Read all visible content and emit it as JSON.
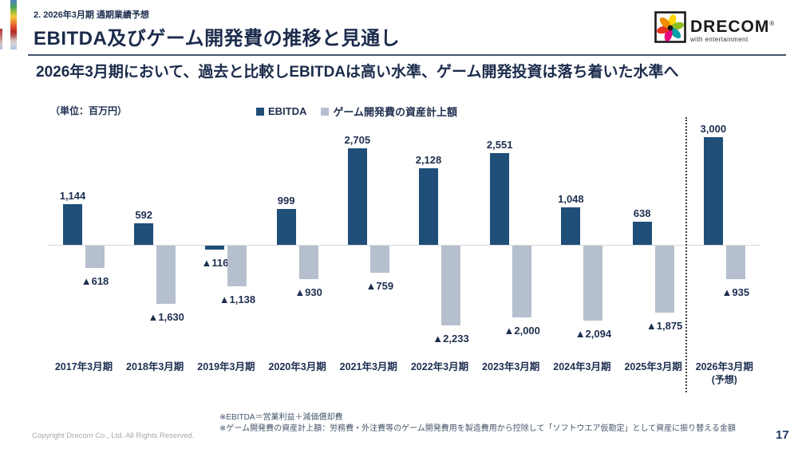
{
  "page": {
    "eyebrow": "2. 2026年3月期 通期業績予想",
    "title": "EBITDA及びゲーム開発費の推移と見通し",
    "subtitle": "2026年3月期において、過去と比較しEBITDAは高い水準、ゲーム開発投資は落ち着いた水準へ",
    "copyright": "Copyright Drecom Co., Ltd. All Rights Reserved.",
    "page_number": "17",
    "notes": [
      "※EBITDA＝営業利益＋減価償却費",
      "※ゲーム開発費の資産計上額：労務費・外注費等のゲーム開発費用を製造費用から控除して「ソフトウエア仮勘定」として資産に振り替える金額"
    ]
  },
  "logo": {
    "name": "DRECOM",
    "registered": "®",
    "tagline": "with entertainment"
  },
  "colors": {
    "accent_navy": "#1e2f50",
    "bar_ebitda": "#1f4e78",
    "bar_gamedev": "#b6bfcd"
  },
  "chart_data": {
    "type": "bar",
    "title": "EBITDA及びゲーム開発費の推移と見通し",
    "unit_label": "（単位：百万円）",
    "negative_marker": "▲",
    "grid": false,
    "legend_position": "top",
    "categories": [
      "2017年3月期",
      "2018年3月期",
      "2019年3月期",
      "2020年3月期",
      "2021年3月期",
      "2022年3月期",
      "2023年3月期",
      "2024年3月期",
      "2025年3月期",
      "2026年3月期"
    ],
    "forecast_note": "(予想)",
    "forecast_category_index": 9,
    "ylim": [
      -2500,
      3200
    ],
    "series": [
      {
        "name": "EBITDA",
        "color": "#1f4e78",
        "values": [
          1144,
          592,
          -116,
          999,
          2705,
          2128,
          2551,
          1048,
          638,
          3000
        ]
      },
      {
        "name": "ゲーム開発費の資産計上額",
        "color": "#b6bfcd",
        "values": [
          -618,
          -1630,
          -1138,
          -930,
          -759,
          -2233,
          -2000,
          -2094,
          -1875,
          -935
        ]
      }
    ]
  }
}
